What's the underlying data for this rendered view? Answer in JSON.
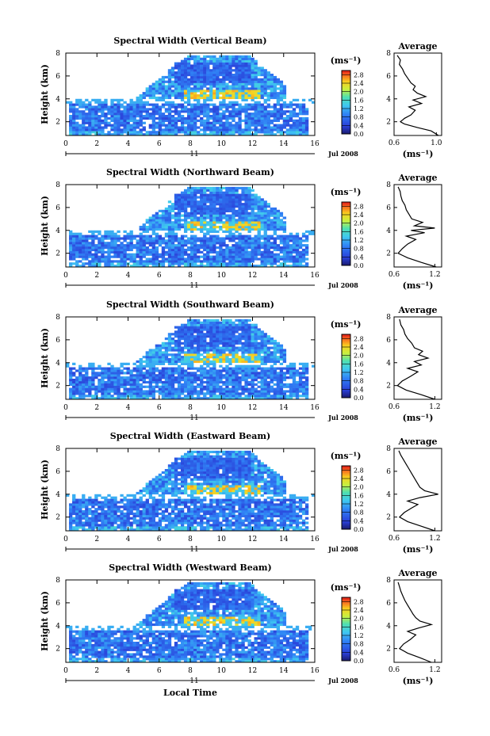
{
  "chart_data": [
    {
      "type": "heatmap",
      "title": "Spectral Width (Vertical Beam)",
      "ylabel": "Height (km)",
      "x_ticks": [
        "0",
        "2",
        "4",
        "6",
        "8",
        "10",
        "12",
        "14",
        "16"
      ],
      "y_ticks": [
        "2",
        "4",
        "6",
        "8"
      ],
      "xlim": [
        0,
        16
      ],
      "ylim": [
        0.8,
        8
      ],
      "date_day": "11",
      "date_label": "Jul 2008",
      "colorbar": {
        "unit_label": "(ms⁻¹)",
        "ticks": [
          "0.0",
          "0.4",
          "0.8",
          "1.2",
          "1.6",
          "2.0",
          "2.4",
          "2.8"
        ],
        "range": [
          0,
          3.0
        ]
      },
      "average": {
        "title": "Average",
        "xunit": "(ms⁻¹)",
        "x_ticks": [
          "0.6",
          "1.0"
        ],
        "y_ticks": [
          "2",
          "4",
          "6",
          "8"
        ],
        "xlim": [
          0.6,
          1.05
        ],
        "profile": [
          [
            0.8,
            1.02
          ],
          [
            1.2,
            0.95
          ],
          [
            1.5,
            0.82
          ],
          [
            1.8,
            0.7
          ],
          [
            2.0,
            0.66
          ],
          [
            2.3,
            0.7
          ],
          [
            2.6,
            0.76
          ],
          [
            3.0,
            0.8
          ],
          [
            3.3,
            0.74
          ],
          [
            3.6,
            0.86
          ],
          [
            3.9,
            0.78
          ],
          [
            4.2,
            0.9
          ],
          [
            4.5,
            0.82
          ],
          [
            4.8,
            0.78
          ],
          [
            5.1,
            0.8
          ],
          [
            5.4,
            0.76
          ],
          [
            5.8,
            0.73
          ],
          [
            6.2,
            0.7
          ],
          [
            6.6,
            0.68
          ],
          [
            7.0,
            0.65
          ],
          [
            7.4,
            0.66
          ],
          [
            7.8,
            0.63
          ]
        ]
      }
    },
    {
      "type": "heatmap",
      "title": "Spectral Width (Northward Beam)",
      "ylabel": "Height (km)",
      "x_ticks": [
        "0",
        "2",
        "4",
        "6",
        "8",
        "10",
        "12",
        "14",
        "16"
      ],
      "y_ticks": [
        "2",
        "4",
        "6",
        "8"
      ],
      "xlim": [
        0,
        16
      ],
      "ylim": [
        0.8,
        8
      ],
      "date_day": "11",
      "date_label": "Jul 2008",
      "colorbar": {
        "unit_label": "(ms⁻¹)",
        "ticks": [
          "0.0",
          "0.4",
          "0.8",
          "1.2",
          "1.6",
          "2.0",
          "2.4",
          "2.8"
        ],
        "range": [
          0,
          3.0
        ]
      },
      "average": {
        "title": "Average",
        "xunit": "(ms⁻¹)",
        "x_ticks": [
          "0.6",
          "1.2"
        ],
        "y_ticks": [
          "2",
          "4",
          "6",
          "8"
        ],
        "xlim": [
          0.6,
          1.3
        ],
        "profile": [
          [
            0.8,
            1.22
          ],
          [
            1.2,
            1.0
          ],
          [
            1.6,
            0.8
          ],
          [
            2.0,
            0.66
          ],
          [
            2.4,
            0.72
          ],
          [
            2.8,
            0.8
          ],
          [
            3.2,
            0.92
          ],
          [
            3.5,
            0.78
          ],
          [
            3.8,
            1.05
          ],
          [
            4.0,
            0.85
          ],
          [
            4.2,
            1.2
          ],
          [
            4.4,
            0.9
          ],
          [
            4.7,
            1.02
          ],
          [
            5.0,
            0.86
          ],
          [
            5.4,
            0.82
          ],
          [
            5.8,
            0.78
          ],
          [
            6.2,
            0.76
          ],
          [
            6.6,
            0.72
          ],
          [
            7.0,
            0.7
          ],
          [
            7.4,
            0.69
          ],
          [
            7.8,
            0.66
          ]
        ]
      }
    },
    {
      "type": "heatmap",
      "title": "Spectral Width (Southward Beam)",
      "ylabel": "Height (km)",
      "x_ticks": [
        "0",
        "2",
        "4",
        "6",
        "8",
        "10",
        "12",
        "14",
        "16"
      ],
      "y_ticks": [
        "2",
        "4",
        "6",
        "8"
      ],
      "xlim": [
        0,
        16
      ],
      "ylim": [
        0.8,
        8
      ],
      "date_day": "11",
      "date_label": "Jul 2008",
      "colorbar": {
        "unit_label": "(ms⁻¹)",
        "ticks": [
          "0.0",
          "0.4",
          "0.8",
          "1.2",
          "1.6",
          "2.0",
          "2.4",
          "2.8"
        ],
        "range": [
          0,
          3.0
        ]
      },
      "average": {
        "title": "Average",
        "xunit": "(ms⁻¹)",
        "x_ticks": [
          "0.6",
          "1.2"
        ],
        "y_ticks": [
          "2",
          "4",
          "6",
          "8"
        ],
        "xlim": [
          0.6,
          1.3
        ],
        "profile": [
          [
            0.8,
            1.2
          ],
          [
            1.2,
            1.0
          ],
          [
            1.6,
            0.78
          ],
          [
            2.0,
            0.65
          ],
          [
            2.4,
            0.72
          ],
          [
            2.8,
            0.84
          ],
          [
            3.2,
            0.95
          ],
          [
            3.5,
            0.8
          ],
          [
            3.8,
            1.0
          ],
          [
            4.1,
            0.9
          ],
          [
            4.4,
            1.1
          ],
          [
            4.7,
            0.96
          ],
          [
            5.0,
            1.02
          ],
          [
            5.3,
            0.9
          ],
          [
            5.7,
            0.86
          ],
          [
            6.1,
            0.8
          ],
          [
            6.5,
            0.76
          ],
          [
            6.9,
            0.74
          ],
          [
            7.3,
            0.7
          ],
          [
            7.8,
            0.68
          ]
        ]
      }
    },
    {
      "type": "heatmap",
      "title": "Spectral Width (Eastward Beam)",
      "ylabel": "Height (km)",
      "x_ticks": [
        "0",
        "2",
        "4",
        "6",
        "8",
        "10",
        "12",
        "14",
        "16"
      ],
      "y_ticks": [
        "2",
        "4",
        "6",
        "8"
      ],
      "xlim": [
        0,
        16
      ],
      "ylim": [
        0.8,
        8
      ],
      "date_day": "11",
      "date_label": "Jul 2008",
      "colorbar": {
        "unit_label": "(ms⁻¹)",
        "ticks": [
          "0.0",
          "0.4",
          "0.8",
          "1.2",
          "1.6",
          "2.0",
          "2.4",
          "2.8"
        ],
        "range": [
          0,
          3.0
        ]
      },
      "average": {
        "title": "Average",
        "xunit": "(ms⁻¹)",
        "x_ticks": [
          "0.6",
          "1.2"
        ],
        "y_ticks": [
          "2",
          "4",
          "6",
          "8"
        ],
        "xlim": [
          0.6,
          1.3
        ],
        "profile": [
          [
            0.8,
            1.2
          ],
          [
            1.2,
            1.0
          ],
          [
            1.6,
            0.8
          ],
          [
            2.0,
            0.68
          ],
          [
            2.4,
            0.75
          ],
          [
            2.8,
            0.86
          ],
          [
            3.1,
            0.95
          ],
          [
            3.4,
            0.8
          ],
          [
            3.7,
            0.98
          ],
          [
            4.0,
            1.25
          ],
          [
            4.3,
            1.05
          ],
          [
            4.6,
            0.98
          ],
          [
            5.0,
            0.94
          ],
          [
            5.4,
            0.9
          ],
          [
            5.8,
            0.86
          ],
          [
            6.2,
            0.82
          ],
          [
            6.6,
            0.78
          ],
          [
            7.0,
            0.74
          ],
          [
            7.4,
            0.7
          ],
          [
            7.8,
            0.67
          ]
        ]
      }
    },
    {
      "type": "heatmap",
      "title": "Spectral Width (Westward Beam)",
      "ylabel": "Height (km)",
      "x_ticks": [
        "0",
        "2",
        "4",
        "6",
        "8",
        "10",
        "12",
        "14",
        "16"
      ],
      "y_ticks": [
        "2",
        "4",
        "6",
        "8"
      ],
      "xlim": [
        0,
        16
      ],
      "ylim": [
        0.8,
        8
      ],
      "date_day": "11",
      "date_label": "Jul 2008",
      "colorbar": {
        "unit_label": "(ms⁻¹)",
        "ticks": [
          "0.0",
          "0.4",
          "0.8",
          "1.2",
          "1.6",
          "2.0",
          "2.4",
          "2.8"
        ],
        "range": [
          0,
          3.0
        ]
      },
      "average": {
        "title": "Average",
        "xunit": "(ms⁻¹)",
        "x_ticks": [
          "0.6",
          "1.2"
        ],
        "y_ticks": [
          "2",
          "4",
          "6",
          "8"
        ],
        "xlim": [
          0.6,
          1.3
        ],
        "profile": [
          [
            0.8,
            1.15
          ],
          [
            1.2,
            0.98
          ],
          [
            1.6,
            0.8
          ],
          [
            2.0,
            0.68
          ],
          [
            2.4,
            0.74
          ],
          [
            2.8,
            0.84
          ],
          [
            3.2,
            0.92
          ],
          [
            3.5,
            0.8
          ],
          [
            3.8,
            0.96
          ],
          [
            4.1,
            1.15
          ],
          [
            4.4,
            0.98
          ],
          [
            4.7,
            0.92
          ],
          [
            5.0,
            0.88
          ],
          [
            5.4,
            0.84
          ],
          [
            5.8,
            0.8
          ],
          [
            6.2,
            0.76
          ],
          [
            6.6,
            0.73
          ],
          [
            7.0,
            0.7
          ],
          [
            7.4,
            0.68
          ],
          [
            7.8,
            0.66
          ]
        ]
      }
    }
  ],
  "x_axis_label": "Local Time"
}
